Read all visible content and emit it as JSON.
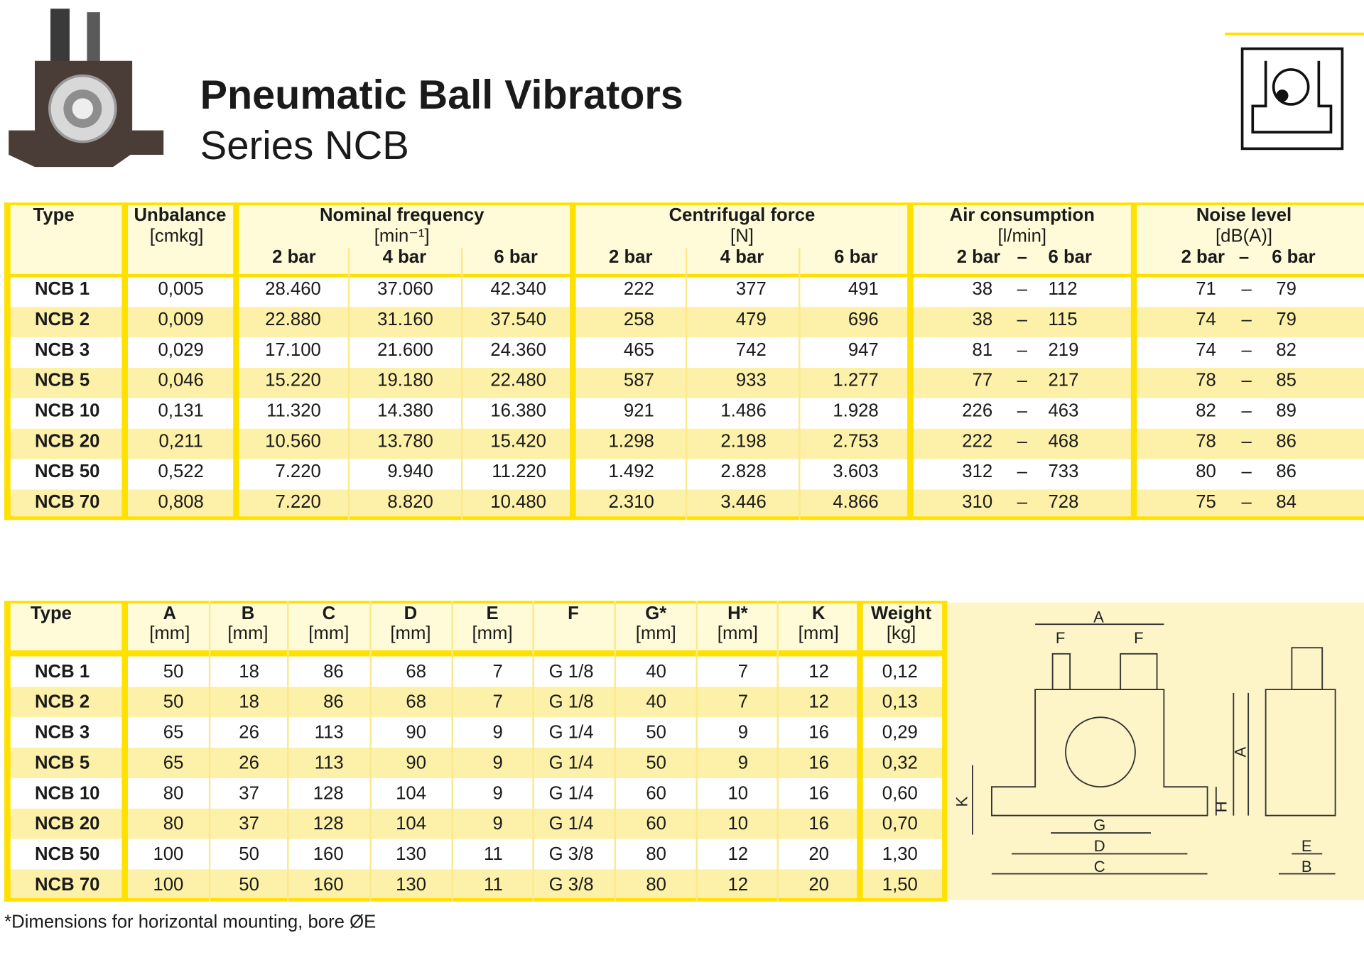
{
  "header": {
    "title": "Pneumatic Ball Vibrators",
    "subtitle": "Series NCB"
  },
  "performance_table": {
    "headers": {
      "type": "Type",
      "unbalance": {
        "label": "Unbalance",
        "unit": "[cmkg]"
      },
      "frequency": {
        "label": "Nominal frequency",
        "unit": "[min⁻¹]",
        "pressures": [
          "2 bar",
          "4 bar",
          "6 bar"
        ]
      },
      "force": {
        "label": "Centrifugal force",
        "unit": "[N]",
        "pressures": [
          "2 bar",
          "4 bar",
          "6 bar"
        ]
      },
      "air": {
        "label": "Air consumption",
        "unit": "[l/min]",
        "pressures": [
          "2 bar",
          "6 bar"
        ]
      },
      "noise": {
        "label": "Noise level",
        "unit": "[dB(A)]",
        "pressures": [
          "2 bar",
          "6 bar"
        ]
      }
    },
    "range_separator": "–",
    "rows": [
      [
        "NCB 1",
        "0,005",
        "28.460",
        "37.060",
        "42.340",
        "222",
        "377",
        "491",
        "38",
        "112",
        "71",
        "79"
      ],
      [
        "NCB 2",
        "0,009",
        "22.880",
        "31.160",
        "37.540",
        "258",
        "479",
        "696",
        "38",
        "115",
        "74",
        "79"
      ],
      [
        "NCB 3",
        "0,029",
        "17.100",
        "21.600",
        "24.360",
        "465",
        "742",
        "947",
        "81",
        "219",
        "74",
        "82"
      ],
      [
        "NCB 5",
        "0,046",
        "15.220",
        "19.180",
        "22.480",
        "587",
        "933",
        "1.277",
        "77",
        "217",
        "78",
        "85"
      ],
      [
        "NCB 10",
        "0,131",
        "11.320",
        "14.380",
        "16.380",
        "921",
        "1.486",
        "1.928",
        "226",
        "463",
        "82",
        "89"
      ],
      [
        "NCB 20",
        "0,211",
        "10.560",
        "13.780",
        "15.420",
        "1.298",
        "2.198",
        "2.753",
        "222",
        "468",
        "78",
        "86"
      ],
      [
        "NCB 50",
        "0,522",
        "7.220",
        "9.940",
        "11.220",
        "1.492",
        "2.828",
        "3.603",
        "312",
        "733",
        "80",
        "86"
      ],
      [
        "NCB 70",
        "0,808",
        "7.220",
        "8.820",
        "10.480",
        "2.310",
        "3.446",
        "4.866",
        "310",
        "728",
        "75",
        "84"
      ]
    ]
  },
  "dimension_table": {
    "headers": [
      {
        "label": "Type"
      },
      {
        "label": "A",
        "unit": "[mm]"
      },
      {
        "label": "B",
        "unit": "[mm]"
      },
      {
        "label": "C",
        "unit": "[mm]"
      },
      {
        "label": "D",
        "unit": "[mm]"
      },
      {
        "label": "E",
        "unit": "[mm]"
      },
      {
        "label": "F"
      },
      {
        "label": "G*",
        "unit": "[mm]"
      },
      {
        "label": "H*",
        "unit": "[mm]"
      },
      {
        "label": "K",
        "unit": "[mm]"
      },
      {
        "label": "Weight",
        "unit": "[kg]"
      }
    ],
    "rows": [
      [
        "NCB 1",
        "50",
        "18",
        "86",
        "68",
        "7",
        "G 1/8",
        "40",
        "7",
        "12",
        "0,12"
      ],
      [
        "NCB 2",
        "50",
        "18",
        "86",
        "68",
        "7",
        "G 1/8",
        "40",
        "7",
        "12",
        "0,13"
      ],
      [
        "NCB 3",
        "65",
        "26",
        "113",
        "90",
        "9",
        "G 1/4",
        "50",
        "9",
        "16",
        "0,29"
      ],
      [
        "NCB 5",
        "65",
        "26",
        "113",
        "90",
        "9",
        "G 1/4",
        "50",
        "9",
        "16",
        "0,32"
      ],
      [
        "NCB 10",
        "80",
        "37",
        "128",
        "104",
        "9",
        "G 1/4",
        "60",
        "10",
        "16",
        "0,60"
      ],
      [
        "NCB 20",
        "80",
        "37",
        "128",
        "104",
        "9",
        "G 1/4",
        "60",
        "10",
        "16",
        "0,70"
      ],
      [
        "NCB 50",
        "100",
        "50",
        "160",
        "130",
        "11",
        "G 3/8",
        "80",
        "12",
        "20",
        "1,30"
      ],
      [
        "NCB 70",
        "100",
        "50",
        "160",
        "130",
        "11",
        "G 3/8",
        "80",
        "12",
        "20",
        "1,50"
      ]
    ]
  },
  "drawing": {
    "labels": {
      "A_top": "A",
      "F_left": "F",
      "F_right": "F",
      "A_side": "A",
      "K": "K",
      "H": "H",
      "G": "G",
      "D": "D",
      "C": "C",
      "E": "E",
      "B": "B"
    }
  },
  "footnote": "*Dimensions for horizontal mounting, bore ØE"
}
